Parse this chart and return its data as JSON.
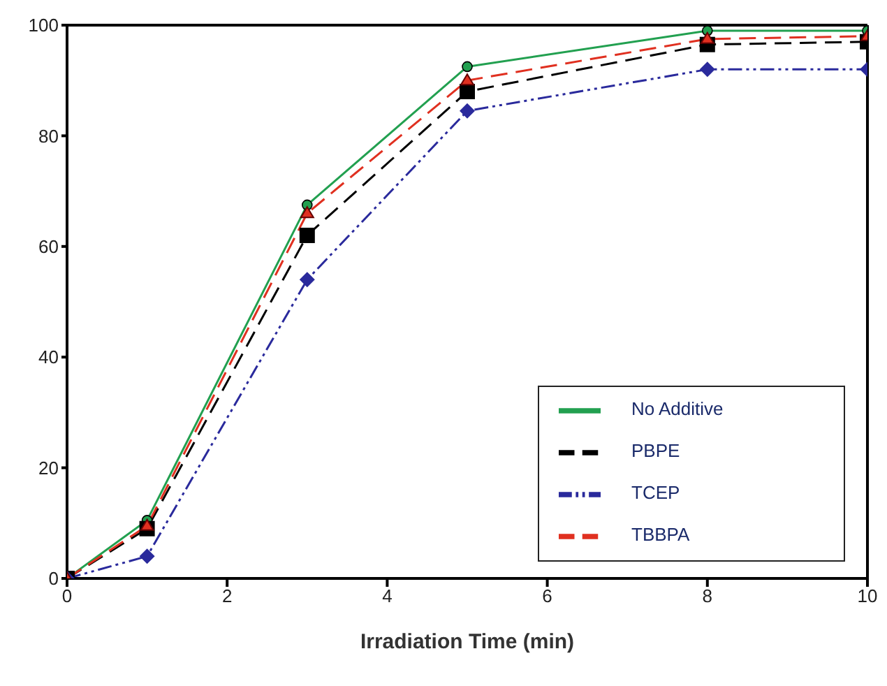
{
  "chart_data": {
    "type": "line",
    "xlabel": "Irradiation Time (min)",
    "x": [
      0,
      1,
      3,
      5,
      8,
      10
    ],
    "series": [
      {
        "name": "No Additive",
        "color": "#22a050",
        "marker": "circle",
        "line_style": "solid",
        "values": [
          0,
          10.5,
          67.5,
          92.5,
          99,
          99
        ]
      },
      {
        "name": "PBPE",
        "color": "#000000",
        "marker": "square",
        "line_style": "dashed",
        "values": [
          0,
          9,
          62,
          88,
          96.5,
          97
        ]
      },
      {
        "name": "TCEP",
        "color": "#2a2a9c",
        "marker": "diamond",
        "line_style": "dotted",
        "values": [
          0,
          4,
          54,
          84.5,
          92,
          92
        ]
      },
      {
        "name": "TBBPA",
        "color": "#e03020",
        "marker": "triangle",
        "line_style": "dashed",
        "values": [
          0,
          9.5,
          66,
          90,
          97.5,
          98
        ]
      }
    ],
    "xlim": [
      0,
      10
    ],
    "xticks": [
      0,
      2,
      4,
      6,
      8,
      10
    ],
    "ylim": [
      0,
      100
    ],
    "yticks": [
      0,
      20,
      40,
      60,
      80,
      100
    ],
    "grid": false,
    "legend": "bottom right"
  }
}
